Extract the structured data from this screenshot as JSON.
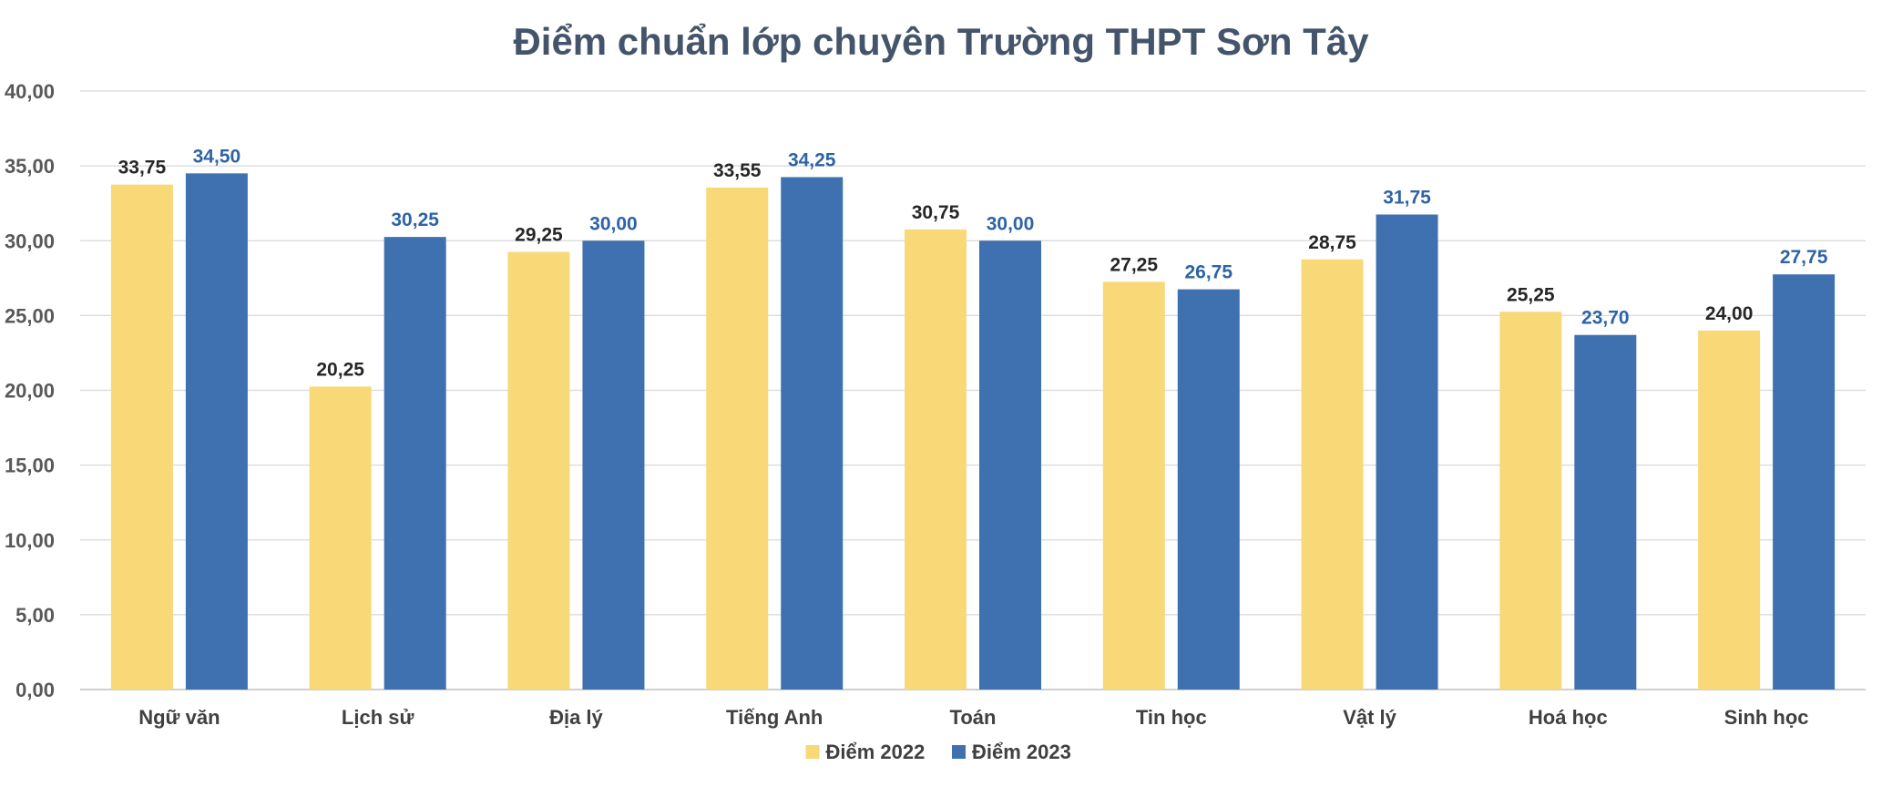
{
  "chart_data": {
    "type": "bar",
    "title": "Điểm chuẩn lớp chuyên Trường THPT Sơn Tây",
    "xlabel": "",
    "ylabel": "",
    "ylim": [
      0,
      40
    ],
    "yticks": [
      "0,00",
      "5,00",
      "10,00",
      "15,00",
      "20,00",
      "25,00",
      "30,00",
      "35,00",
      "40,00"
    ],
    "grid": true,
    "legend_position": "bottom",
    "categories": [
      "Ngữ văn",
      "Lịch sử",
      "Địa lý",
      "Tiếng Anh",
      "Toán",
      "Tin học",
      "Vật lý",
      "Hoá học",
      "Sinh học"
    ],
    "series": [
      {
        "name": "Điểm 2022",
        "color": "#f9d878",
        "label_color": "#262626",
        "values": [
          33.75,
          20.25,
          29.25,
          33.55,
          30.75,
          27.25,
          28.75,
          25.25,
          24.0
        ],
        "labels": [
          "33,75",
          "20,25",
          "29,25",
          "33,55",
          "30,75",
          "27,25",
          "28,75",
          "25,25",
          "24,00"
        ]
      },
      {
        "name": "Điểm 2023",
        "color": "#3f71b0",
        "label_color": "#2e63a6",
        "values": [
          34.5,
          30.25,
          30.0,
          34.25,
          30.0,
          26.75,
          31.75,
          23.7,
          27.75
        ],
        "labels": [
          "34,50",
          "30,25",
          "30,00",
          "34,25",
          "30,00",
          "26,75",
          "31,75",
          "23,70",
          "27,75"
        ]
      }
    ]
  }
}
